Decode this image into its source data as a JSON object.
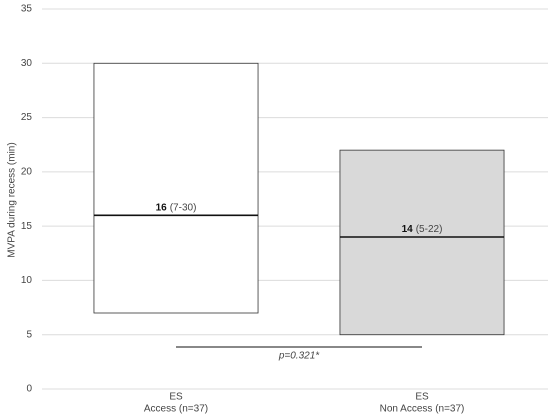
{
  "chart_data": {
    "type": "range-box",
    "y_label": "MVPA during recess (min)",
    "categories": [
      [
        "ES",
        "Access (n=37)"
      ],
      [
        "ES",
        "Non Access (n=37)"
      ]
    ],
    "boxes": [
      {
        "low": 7,
        "median": 16,
        "high": 30,
        "color": "#ffffff",
        "range_label": "(7-30)"
      },
      {
        "low": 5,
        "median": 14,
        "high": 22,
        "color": "#d9d9d9",
        "range_label": "(5-22)"
      }
    ],
    "annotation": "p=0.321*",
    "ylim": [
      0,
      35
    ],
    "yticks": [
      0,
      5,
      10,
      15,
      20,
      25,
      30,
      35
    ],
    "grid": true
  }
}
